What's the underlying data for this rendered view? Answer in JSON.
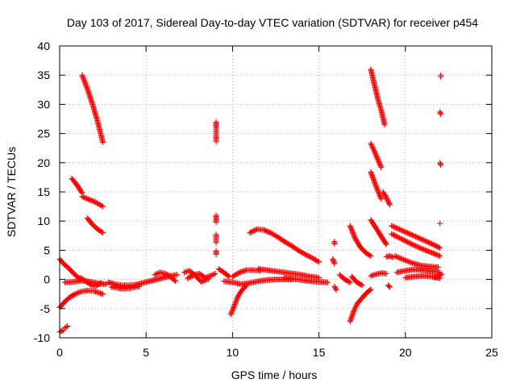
{
  "chart_data": {
    "type": "scatter",
    "title": "Day 103 of 2017, Sidereal Day-to-day VTEC variation (SDTVAR) for receiver p454",
    "xlabel": "GPS time / hours",
    "ylabel": "SDTVAR / TECUs",
    "xlim": [
      0,
      25
    ],
    "ylim": [
      -10,
      40
    ],
    "xticks": [
      0,
      5,
      10,
      15,
      20,
      25
    ],
    "yticks": [
      -10,
      -5,
      0,
      5,
      10,
      15,
      20,
      25,
      30,
      35,
      40
    ],
    "xtick_labels": [
      "0",
      "5",
      "10",
      "15",
      "20",
      "25"
    ],
    "ytick_labels": [
      "-10",
      "-5",
      "0",
      "5",
      "10",
      "15",
      "20",
      "25",
      "30",
      "35",
      "40"
    ],
    "grid": true,
    "marker": "plus",
    "color": "#ff0000",
    "segments": [
      {
        "x": [
          0.0,
          0.25,
          0.5,
          0.75,
          1.0,
          1.2
        ],
        "y": [
          3.5,
          2.6,
          2.0,
          1.2,
          0.5,
          0.0
        ]
      },
      {
        "x": [
          0.0,
          0.2
        ],
        "y": [
          -9.0,
          -8.7
        ]
      },
      {
        "x": [
          0.3,
          0.45
        ],
        "y": [
          -8.3,
          -8.0
        ]
      },
      {
        "x": [
          0.0,
          0.3,
          0.6,
          0.9,
          1.2,
          1.6,
          2.0,
          2.5
        ],
        "y": [
          -4.8,
          -3.8,
          -3.0,
          -2.5,
          -2.1,
          -1.9,
          -2.0,
          -2.5
        ]
      },
      {
        "x": [
          0.3,
          0.8,
          1.3,
          1.8,
          2.3,
          2.7
        ],
        "y": [
          -0.5,
          -0.4,
          -0.2,
          -0.4,
          -0.7,
          -0.8
        ]
      },
      {
        "x": [
          1.3,
          1.6,
          1.9,
          2.2,
          2.5
        ],
        "y": [
          35.0,
          32.7,
          30.0,
          27.0,
          23.5
        ]
      },
      {
        "x": [
          0.7,
          1.0,
          1.3
        ],
        "y": [
          17.3,
          16.2,
          14.8
        ]
      },
      {
        "x": [
          1.3,
          1.7,
          2.1,
          2.5
        ],
        "y": [
          14.2,
          13.7,
          13.2,
          12.5
        ]
      },
      {
        "x": [
          1.6,
          1.9,
          2.2,
          2.5
        ],
        "y": [
          10.5,
          9.4,
          8.6,
          8.0
        ]
      },
      {
        "x": [
          1.2,
          1.5,
          1.8,
          2.1,
          2.4
        ],
        "y": [
          0.3,
          -0.3,
          -0.9,
          -1.1,
          -0.6
        ]
      },
      {
        "x": [
          2.8,
          3.2,
          3.6,
          4.0,
          4.4,
          4.8,
          5.2,
          5.6,
          6.0,
          6.4,
          6.8
        ],
        "y": [
          -0.5,
          -0.8,
          -1.0,
          -1.0,
          -0.9,
          -0.6,
          -0.3,
          0.0,
          0.3,
          0.6,
          0.8
        ]
      },
      {
        "x": [
          3.0,
          3.4,
          3.8,
          4.2,
          4.6
        ],
        "y": [
          -1.3,
          -1.5,
          -1.6,
          -1.4,
          -1.2
        ]
      },
      {
        "x": [
          5.5,
          5.8,
          6.1,
          6.4,
          6.7
        ],
        "y": [
          0.8,
          1.2,
          1.0,
          0.5,
          -0.3
        ]
      },
      {
        "x": [
          7.2,
          7.5,
          7.8,
          8.1,
          8.4,
          8.7,
          9.0
        ],
        "y": [
          1.2,
          1.5,
          0.8,
          1.0,
          0.3,
          0.6,
          1.0
        ]
      },
      {
        "x": [
          7.4,
          7.8,
          8.2,
          8.6
        ],
        "y": [
          0.2,
          0.8,
          -0.4,
          0.1
        ]
      },
      {
        "x": [
          9.05,
          9.05,
          9.05,
          9.05
        ],
        "y": [
          27.0,
          26.0,
          24.8,
          23.6
        ]
      },
      {
        "x": [
          9.05,
          9.05,
          9.05
        ],
        "y": [
          11.0,
          10.4,
          9.8
        ]
      },
      {
        "x": [
          9.05,
          9.05,
          9.05
        ],
        "y": [
          7.7,
          7.0,
          6.3
        ]
      },
      {
        "x": [
          9.05,
          9.05
        ],
        "y": [
          4.9,
          4.3
        ]
      },
      {
        "x": [
          9.2,
          9.5,
          9.8
        ],
        "y": [
          1.8,
          1.2,
          0.5
        ]
      },
      {
        "x": [
          9.9,
          10.1,
          10.3,
          10.5,
          10.8
        ],
        "y": [
          -6.0,
          -4.5,
          -3.0,
          -2.0,
          -1.0
        ]
      },
      {
        "x": [
          10.0,
          10.4,
          10.8,
          11.2,
          11.6
        ],
        "y": [
          0.5,
          1.2,
          1.6,
          1.6,
          1.5
        ]
      },
      {
        "x": [
          9.5,
          10.0,
          10.5,
          11.0,
          11.5,
          12.0,
          12.5,
          13.0,
          13.5
        ],
        "y": [
          -0.3,
          -0.5,
          -0.8,
          -0.6,
          -0.3,
          -0.1,
          0.0,
          0.0,
          0.0
        ]
      },
      {
        "x": [
          11.0,
          11.4,
          11.8,
          12.2,
          12.6,
          13.0,
          13.4,
          13.8,
          14.2,
          14.6,
          15.0
        ],
        "y": [
          8.0,
          8.6,
          8.5,
          8.0,
          7.3,
          6.5,
          5.8,
          5.0,
          4.3,
          3.7,
          3.0
        ]
      },
      {
        "x": [
          11.5,
          12.0,
          12.5,
          13.0,
          13.5,
          14.0,
          14.5,
          15.0
        ],
        "y": [
          1.8,
          1.6,
          1.4,
          1.2,
          1.0,
          0.8,
          0.5,
          0.3
        ]
      },
      {
        "x": [
          13.0,
          13.5,
          14.0,
          14.5,
          15.0,
          15.5
        ],
        "y": [
          0.3,
          0.1,
          -0.1,
          -0.3,
          -0.4,
          -0.5
        ]
      },
      {
        "x": [
          15.9,
          15.9
        ],
        "y": [
          6.5,
          6.1
        ]
      },
      {
        "x": [
          15.8,
          15.9
        ],
        "y": [
          3.5,
          2.7
        ]
      },
      {
        "x": [
          15.9,
          16.0
        ],
        "y": [
          -1.2,
          -1.8
        ]
      },
      {
        "x": [
          16.2,
          16.5,
          16.8
        ],
        "y": [
          0.8,
          0.0,
          -0.5
        ]
      },
      {
        "x": [
          16.8,
          17.1,
          17.4,
          17.7,
          18.0
        ],
        "y": [
          9.2,
          7.0,
          5.5,
          4.6,
          4.0
        ]
      },
      {
        "x": [
          16.8,
          17.0,
          17.2,
          17.4,
          17.6,
          17.8,
          18.0
        ],
        "y": [
          -7.2,
          -5.5,
          -4.2,
          -3.5,
          -2.8,
          -2.2,
          -1.7
        ]
      },
      {
        "x": [
          16.9,
          17.2,
          17.5
        ],
        "y": [
          0.5,
          -0.5,
          -1.0
        ]
      },
      {
        "x": [
          18.0,
          18.2,
          18.4,
          18.6,
          18.8
        ],
        "y": [
          36.0,
          33.5,
          31.0,
          29.0,
          26.5
        ]
      },
      {
        "x": [
          18.0,
          18.2,
          18.4,
          18.6
        ],
        "y": [
          23.3,
          22.0,
          20.6,
          19.2
        ]
      },
      {
        "x": [
          18.0,
          18.3,
          18.6
        ],
        "y": [
          18.4,
          16.0,
          13.8
        ]
      },
      {
        "x": [
          18.7,
          18.9,
          19.1
        ],
        "y": [
          15.0,
          14.0,
          12.8
        ]
      },
      {
        "x": [
          18.0,
          18.3,
          18.6,
          18.9
        ],
        "y": [
          10.2,
          8.8,
          7.4,
          6.0
        ]
      },
      {
        "x": [
          18.9,
          19.1,
          19.3
        ],
        "y": [
          3.9,
          4.0,
          3.8
        ]
      },
      {
        "x": [
          18.0,
          18.3,
          18.6,
          18.9
        ],
        "y": [
          0.6,
          0.9,
          1.1,
          1.0
        ]
      },
      {
        "x": [
          19.0,
          19.1
        ],
        "y": [
          -1.0,
          -1.3
        ]
      },
      {
        "x": [
          19.2,
          19.8,
          20.4,
          21.0,
          21.6,
          22.0
        ],
        "y": [
          9.2,
          8.4,
          7.6,
          6.8,
          6.0,
          5.4
        ]
      },
      {
        "x": [
          19.2,
          19.8,
          20.4,
          21.0,
          21.6,
          22.0
        ],
        "y": [
          7.8,
          6.9,
          6.0,
          5.2,
          4.5,
          4.0
        ]
      },
      {
        "x": [
          19.4,
          19.9,
          20.4,
          20.9,
          21.4,
          21.9
        ],
        "y": [
          4.0,
          3.4,
          2.8,
          2.4,
          2.2,
          2.1
        ]
      },
      {
        "x": [
          19.5,
          20.0,
          20.5,
          21.0,
          21.5,
          22.0
        ],
        "y": [
          1.2,
          1.5,
          1.7,
          1.6,
          1.4,
          1.2
        ]
      },
      {
        "x": [
          20.0,
          20.5,
          21.0,
          21.5,
          22.0
        ],
        "y": [
          0.3,
          0.5,
          0.6,
          0.5,
          0.2
        ]
      },
      {
        "x": [
          21.7,
          21.9,
          22.1
        ],
        "y": [
          0.3,
          0.6,
          0.9
        ]
      },
      {
        "x": [
          22.05,
          22.05
        ],
        "y": [
          35.0,
          34.7
        ]
      },
      {
        "x": [
          22.0,
          22.05
        ],
        "y": [
          28.7,
          28.3
        ]
      },
      {
        "x": [
          22.0,
          22.05
        ],
        "y": [
          20.0,
          19.6
        ]
      },
      {
        "x": [
          22.0
        ],
        "y": [
          9.6
        ]
      }
    ]
  }
}
